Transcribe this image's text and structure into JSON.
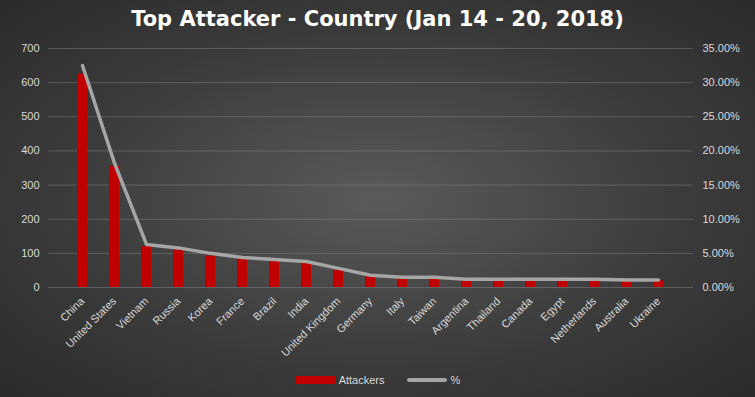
{
  "chart_data": {
    "type": "bar",
    "title": "Top  Attacker  - Country  (Jan 14 - 20, 2018)",
    "categories": [
      "China",
      "United States",
      "Vietnam",
      "Russia",
      "Korea",
      "France",
      "Brazil",
      "India",
      "United Kingdom",
      "Germany",
      "Italy",
      "Taiwan",
      "Argentina",
      "Thailand",
      "Canada",
      "Egypt",
      "Netherlands",
      "Australia",
      "Ukraine"
    ],
    "series": [
      {
        "name": "Attackers",
        "type": "bar",
        "color": "#c00000",
        "values": [
          625,
          355,
          120,
          112,
          92,
          85,
          78,
          73,
          50,
          33,
          27,
          27,
          22,
          22,
          22,
          22,
          22,
          20,
          20
        ]
      },
      {
        "name": "%",
        "type": "line",
        "axis": "y2",
        "color": "#a6a6a6",
        "values": [
          32.5,
          18.2,
          6.3,
          5.8,
          5.0,
          4.4,
          4.1,
          3.8,
          2.8,
          1.8,
          1.5,
          1.5,
          1.2,
          1.2,
          1.2,
          1.2,
          1.2,
          1.1,
          1.1
        ]
      }
    ],
    "ylim": [
      0,
      700
    ],
    "yticks": [
      0,
      100,
      200,
      300,
      400,
      500,
      600,
      700
    ],
    "y2lim": [
      0,
      35
    ],
    "y2ticks": [
      {
        "value": 0,
        "label": "0.00%"
      },
      {
        "value": 5,
        "label": "5.00%"
      },
      {
        "value": 10,
        "label": "10.00%"
      },
      {
        "value": 15,
        "label": "15.00%"
      },
      {
        "value": 20,
        "label": "20.00%"
      },
      {
        "value": 25,
        "label": "25.00%"
      },
      {
        "value": 30,
        "label": "30.00%"
      },
      {
        "value": 35,
        "label": "35.00%"
      }
    ],
    "grid": true,
    "legend": "bottom"
  }
}
